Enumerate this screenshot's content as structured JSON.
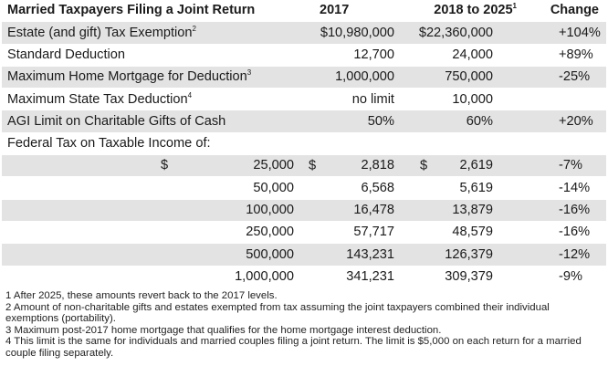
{
  "header": {
    "title": "Married Taxpayers Filing a Joint Return",
    "col_2017": "2017",
    "col_2018": "2018 to 2025",
    "col_2018_sup": "1",
    "col_change": "Change"
  },
  "rows": [
    {
      "label": "Estate (and gift) Tax Exemption",
      "sup": "2",
      "v2017": "$10,980,000",
      "v2018": "$22,360,000",
      "change": "+104%"
    },
    {
      "label": "Standard Deduction",
      "sup": "",
      "v2017": "12,700",
      "v2018": "24,000",
      "change": "+89%"
    },
    {
      "label": "Maximum Home Mortgage for Deduction",
      "sup": "3",
      "v2017": "1,000,000",
      "v2018": "750,000",
      "change": "-25%"
    },
    {
      "label": "Maximum State Tax Deduction",
      "sup": "4",
      "v2017": "no limit",
      "v2018": "10,000",
      "change": ""
    },
    {
      "label": "AGI Limit on Charitable Gifts of Cash",
      "sup": "",
      "v2017": "50%",
      "v2018": "60%",
      "change": "+20%"
    },
    {
      "label": "Federal Tax on Taxable Income of:",
      "sup": "",
      "v2017": "",
      "v2018": "",
      "change": ""
    }
  ],
  "income_rows": [
    {
      "dollar": "$",
      "income": "25,000",
      "d2017": "$",
      "v2017": "2,818",
      "d2018": "$",
      "v2018": "2,619",
      "change": "-7%"
    },
    {
      "dollar": "",
      "income": "50,000",
      "d2017": "",
      "v2017": "6,568",
      "d2018": "",
      "v2018": "5,619",
      "change": "-14%"
    },
    {
      "dollar": "",
      "income": "100,000",
      "d2017": "",
      "v2017": "16,478",
      "d2018": "",
      "v2018": "13,879",
      "change": "-16%"
    },
    {
      "dollar": "",
      "income": "250,000",
      "d2017": "",
      "v2017": "57,717",
      "d2018": "",
      "v2018": "48,579",
      "change": "-16%"
    },
    {
      "dollar": "",
      "income": "500,000",
      "d2017": "",
      "v2017": "143,231",
      "d2018": "",
      "v2018": "126,379",
      "change": "-12%"
    },
    {
      "dollar": "",
      "income": "1,000,000",
      "d2017": "",
      "v2017": "341,231",
      "d2018": "",
      "v2018": "309,379",
      "change": "-9%"
    }
  ],
  "footnotes": [
    "1 After 2025, these amounts revert back to the 2017 levels.",
    "2 Amount of non-charitable gifts and estates exempted from tax assuming the joint taxpayers combined their individual exemptions (portability).",
    "3 Maximum post-2017 home mortgage that qualifies for the home mortgage interest deduction.",
    "4 This limit is the same for individuals and married couples filing a joint return. The limit is $5,000 on each return for a married couple filing separately."
  ],
  "colors": {
    "stripe": "#e3e3e3",
    "background": "#ffffff",
    "text": "#1a1a1a"
  }
}
